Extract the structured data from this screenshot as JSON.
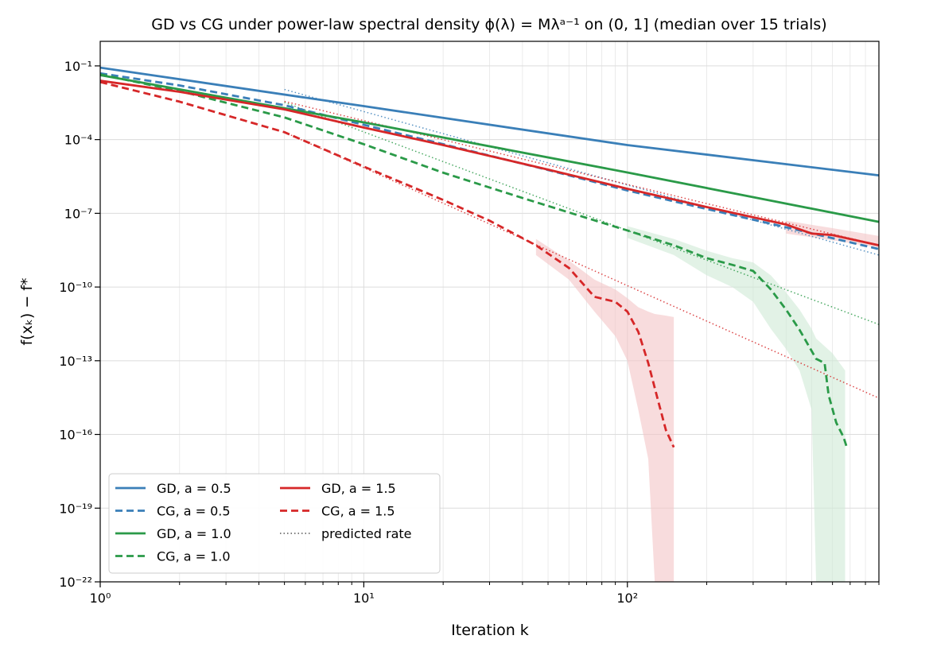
{
  "chart_data": {
    "type": "line",
    "title": "GD vs CG under power-law spectral density ϕ(λ) = Mλᵃ⁻¹ on (0, 1]  (median over 15 trials)",
    "xlabel": "Iteration k",
    "ylabel": "f(xₖ) − f*",
    "xscale": "log",
    "yscale": "log",
    "xlim": [
      1,
      900
    ],
    "ylim": [
      1e-22,
      1
    ],
    "x_ticks": [
      1,
      10,
      100
    ],
    "x_tick_labels": [
      "10⁰",
      "10¹",
      "10²"
    ],
    "y_ticks": [
      1e-22,
      1e-19,
      1e-16,
      1e-13,
      1e-10,
      1e-07,
      0.0001,
      0.1
    ],
    "y_tick_labels": [
      "10⁻²²",
      "10⁻¹⁹",
      "10⁻¹⁶",
      "10⁻¹³",
      "10⁻¹⁰",
      "10⁻⁷",
      "10⁻⁴",
      "10⁻¹"
    ],
    "grid": true,
    "legend_position": "lower-left",
    "series": [
      {
        "name": "GD, a = 0.5",
        "method": "GD",
        "color": "#3a7fb8",
        "style": "solid",
        "points": [
          [
            1,
            0.085
          ],
          [
            10,
            0.0023
          ],
          [
            100,
            6e-05
          ],
          [
            900,
            3.5e-06
          ]
        ]
      },
      {
        "name": "CG, a = 0.5",
        "method": "CG",
        "color": "#3a7fb8",
        "style": "dashed",
        "points": [
          [
            1,
            0.05
          ],
          [
            2,
            0.016
          ],
          [
            5,
            0.0025
          ],
          [
            10,
            0.0004
          ],
          [
            20,
            6.5e-05
          ],
          [
            50,
            5.8e-06
          ],
          [
            100,
            8.5e-07
          ],
          [
            200,
            1.5e-07
          ],
          [
            400,
            2.7e-08
          ],
          [
            900,
            3.5e-09
          ]
        ]
      },
      {
        "name": "GD, a = 1.0",
        "method": "GD",
        "color": "#2a9a48",
        "style": "solid",
        "points": [
          [
            1,
            0.042
          ],
          [
            10,
            0.0005
          ],
          [
            100,
            4.6e-06
          ],
          [
            900,
            4.5e-08
          ]
        ]
      },
      {
        "name": "CG, a = 1.0",
        "method": "CG",
        "color": "#2a9a48",
        "style": "dashed",
        "points": [
          [
            1,
            0.045
          ],
          [
            2,
            0.0095
          ],
          [
            5,
            0.0008
          ],
          [
            10,
            6.5e-05
          ],
          [
            20,
            4.5e-06
          ],
          [
            40,
            4.2e-07
          ],
          [
            70,
            6.5e-08
          ],
          [
            100,
            2e-08
          ],
          [
            150,
            5e-09
          ],
          [
            200,
            1.5e-09
          ],
          [
            250,
            8e-10
          ],
          [
            300,
            4.5e-10
          ],
          [
            350,
            8e-11
          ],
          [
            400,
            1.2e-11
          ],
          [
            450,
            1.8e-12
          ],
          [
            520,
            1.2e-13
          ],
          [
            560,
            8e-14
          ],
          [
            580,
            4e-15
          ],
          [
            620,
            3e-16
          ],
          [
            660,
            8e-17
          ],
          [
            680,
            3e-17
          ]
        ]
      },
      {
        "name": "GD, a = 1.5",
        "method": "GD",
        "color": "#d62728",
        "style": "solid",
        "points": [
          [
            1,
            0.025
          ],
          [
            2,
            0.0088
          ],
          [
            5,
            0.0017
          ],
          [
            10,
            0.00031
          ],
          [
            20,
            6e-05
          ],
          [
            50,
            6e-06
          ],
          [
            100,
            1e-06
          ],
          [
            200,
            1.8e-07
          ],
          [
            400,
            3.5e-08
          ],
          [
            500,
            1.5e-08
          ],
          [
            600,
            1.3e-08
          ],
          [
            900,
            5e-09
          ]
        ]
      },
      {
        "name": "CG, a = 1.5",
        "method": "CG",
        "color": "#d62728",
        "style": "dashed",
        "points": [
          [
            1,
            0.022
          ],
          [
            2,
            0.0035
          ],
          [
            5,
            0.0002
          ],
          [
            10,
            8e-06
          ],
          [
            20,
            3.5e-07
          ],
          [
            30,
            5e-08
          ],
          [
            45,
            5e-09
          ],
          [
            60,
            6e-10
          ],
          [
            75,
            4e-11
          ],
          [
            90,
            2.5e-11
          ],
          [
            100,
            1e-11
          ],
          [
            110,
            1.5e-12
          ],
          [
            120,
            8e-14
          ],
          [
            130,
            3e-15
          ],
          [
            140,
            1.5e-16
          ],
          [
            150,
            3e-17
          ]
        ]
      }
    ],
    "predicted_rate": {
      "name": "predicted rate",
      "style": "dotted",
      "lines": [
        {
          "color": "#3a7fb8",
          "points": [
            [
              5,
              0.011
            ],
            [
              900,
              2e-09
            ]
          ]
        },
        {
          "color": "#2a9a48",
          "points": [
            [
              5,
              0.0033
            ],
            [
              900,
              3e-12
            ]
          ]
        },
        {
          "color": "#d62728",
          "points": [
            [
              5,
              0.0036
            ],
            [
              900,
              5e-09
            ]
          ]
        },
        {
          "color": "#d62728",
          "points": [
            [
              5,
              0.0002
            ],
            [
              900,
              3e-15
            ]
          ]
        }
      ]
    },
    "bands": [
      {
        "color": "#f4c5c6",
        "points": [
          [
            45,
            2e-09,
            9e-09
          ],
          [
            60,
            2e-10,
            1.2e-09
          ],
          [
            75,
            1e-11,
            2e-10
          ],
          [
            90,
            1e-12,
            8e-11
          ],
          [
            100,
            1e-13,
            3.5e-11
          ],
          [
            110,
            1e-15,
            1.5e-11
          ],
          [
            120,
            1e-17,
            1e-11
          ],
          [
            127,
            1e-22,
            8e-12
          ],
          [
            138,
            1e-22,
            7e-12
          ],
          [
            150,
            1e-22,
            6e-12
          ]
        ]
      },
      {
        "color": "#cfe9d6",
        "points": [
          [
            100,
            1e-08,
            3e-08
          ],
          [
            150,
            2e-09,
            9e-09
          ],
          [
            200,
            3e-10,
            3e-09
          ],
          [
            250,
            1e-10,
            1.5e-09
          ],
          [
            300,
            2.5e-11,
            1e-09
          ],
          [
            350,
            2e-12,
            3e-10
          ],
          [
            400,
            3e-13,
            6e-11
          ],
          [
            450,
            4e-14,
            1.2e-11
          ],
          [
            500,
            1e-15,
            2e-12
          ],
          [
            520,
            1e-22,
            8e-13
          ],
          [
            600,
            1e-22,
            2e-13
          ],
          [
            670,
            1e-22,
            4e-14
          ]
        ]
      },
      {
        "color": "#f4c5c6",
        "points": [
          [
            400,
            1.5e-08,
            5e-08
          ],
          [
            600,
            8e-09,
            2.5e-08
          ],
          [
            900,
            4e-09,
            1.2e-08
          ]
        ]
      }
    ],
    "legend_items": [
      {
        "label": "GD, a = 0.5",
        "color": "#3a7fb8",
        "style": "solid"
      },
      {
        "label": "CG, a = 0.5",
        "color": "#3a7fb8",
        "style": "dashed"
      },
      {
        "label": "GD, a = 1.0",
        "color": "#2a9a48",
        "style": "solid"
      },
      {
        "label": "CG, a = 1.0",
        "color": "#2a9a48",
        "style": "dashed"
      },
      {
        "label": "GD, a = 1.5",
        "color": "#d62728",
        "style": "solid"
      },
      {
        "label": "CG, a = 1.5",
        "color": "#d62728",
        "style": "dashed"
      },
      {
        "label": "predicted rate",
        "color": "#555555",
        "style": "dotted"
      }
    ]
  }
}
